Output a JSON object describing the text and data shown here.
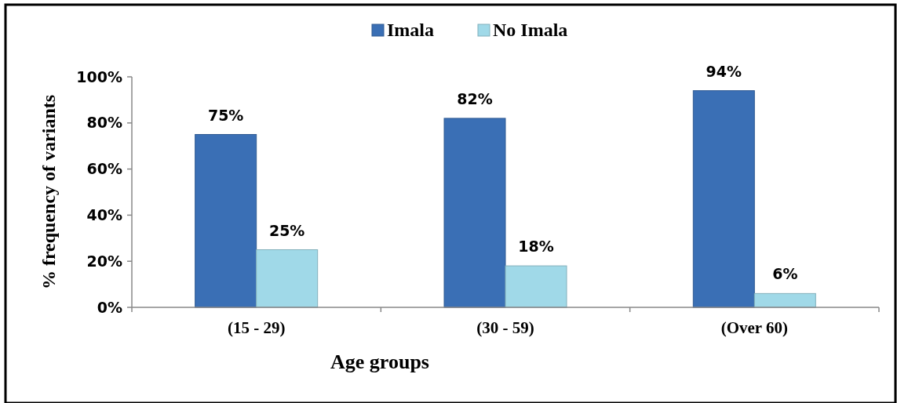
{
  "chart_data": {
    "type": "bar",
    "xlabel": "Age groups",
    "ylabel": "% frequency of variants",
    "categories": [
      "(15 - 29)",
      "(30 - 59)",
      "(Over 60)"
    ],
    "series": [
      {
        "name": "Imala",
        "color": "#3a6fb5",
        "values": [
          75,
          82,
          94
        ],
        "value_labels": [
          "75%",
          "82%",
          "94%"
        ]
      },
      {
        "name": "No Imala",
        "color": "#a0d9e8",
        "values": [
          25,
          18,
          6
        ],
        "value_labels": [
          "25%",
          "18%",
          "6%"
        ]
      }
    ],
    "ylim": [
      0,
      100
    ],
    "yticks": [
      {
        "value": 0,
        "label": "0%"
      },
      {
        "value": 20,
        "label": "20%"
      },
      {
        "value": 40,
        "label": "40%"
      },
      {
        "value": 60,
        "label": "60%"
      },
      {
        "value": 80,
        "label": "80%"
      },
      {
        "value": 100,
        "label": "100%"
      }
    ],
    "grid": false,
    "legend": "top"
  }
}
